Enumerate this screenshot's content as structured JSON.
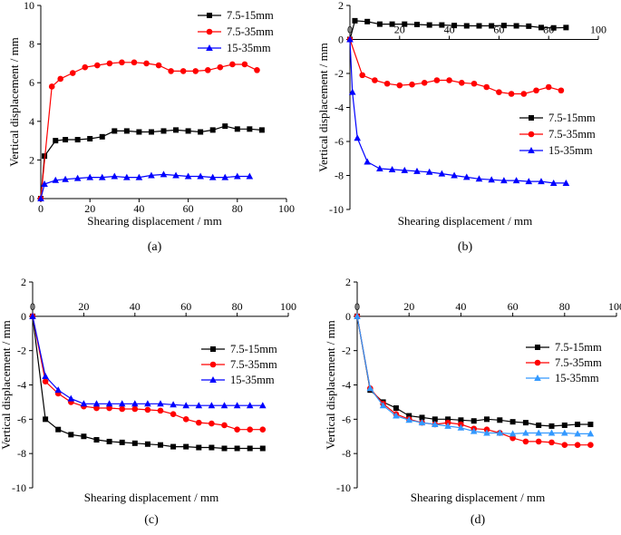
{
  "chart_data": [
    {
      "type": "line",
      "caption": "(a)",
      "xlabel": "Shearing displacement / mm",
      "ylabel": "Vertical displacement / mm",
      "xlim": [
        0,
        100
      ],
      "ylim": [
        0,
        10
      ],
      "xticks": [
        0,
        20,
        40,
        60,
        80,
        100
      ],
      "yticks": [
        0,
        2,
        4,
        6,
        8,
        10
      ],
      "legend_position": "top-right",
      "series": [
        {
          "name": "7.5-15mm",
          "color": "#000000",
          "marker": "square",
          "x": [
            0,
            1.5,
            6,
            10,
            15,
            20,
            25,
            30,
            35,
            40,
            45,
            50,
            55,
            60,
            65,
            70,
            75,
            80,
            85,
            90
          ],
          "y": [
            0,
            2.2,
            3.0,
            3.05,
            3.05,
            3.1,
            3.2,
            3.5,
            3.5,
            3.45,
            3.45,
            3.5,
            3.55,
            3.5,
            3.45,
            3.55,
            3.75,
            3.6,
            3.6,
            3.55
          ]
        },
        {
          "name": "7.5-35mm",
          "color": "#ff0000",
          "marker": "circle",
          "x": [
            0,
            4.5,
            8,
            13,
            18,
            23,
            28,
            33,
            38,
            43,
            48,
            53,
            58,
            63,
            68,
            73,
            78,
            83,
            88
          ],
          "y": [
            0,
            5.8,
            6.2,
            6.5,
            6.8,
            6.9,
            7.0,
            7.05,
            7.05,
            7.0,
            6.9,
            6.6,
            6.6,
            6.6,
            6.65,
            6.8,
            6.95,
            6.95,
            6.65
          ]
        },
        {
          "name": "15-35mm",
          "color": "#0000ff",
          "marker": "triangle",
          "x": [
            0,
            1.5,
            6,
            10,
            15,
            20,
            25,
            30,
            35,
            40,
            45,
            50,
            55,
            60,
            65,
            70,
            75,
            80,
            85
          ],
          "y": [
            0,
            0.75,
            0.95,
            1.0,
            1.05,
            1.1,
            1.1,
            1.15,
            1.1,
            1.1,
            1.2,
            1.25,
            1.2,
            1.15,
            1.15,
            1.1,
            1.1,
            1.15,
            1.15
          ]
        }
      ]
    },
    {
      "type": "line",
      "caption": "(b)",
      "xlabel": "Shearing displacement / mm",
      "ylabel": "Vertical displacement / mm",
      "xlim": [
        0,
        100
      ],
      "ylim": [
        -10,
        2
      ],
      "xticks": [
        0,
        20,
        40,
        60,
        80,
        100
      ],
      "yticks": [
        2,
        0,
        -2,
        -4,
        -6,
        -8,
        -10
      ],
      "legend_position": "middle-right",
      "series": [
        {
          "name": "7.5-15mm",
          "color": "#000000",
          "marker": "square",
          "x": [
            0,
            2,
            7,
            12,
            17,
            22,
            27,
            32,
            37,
            42,
            47,
            52,
            57,
            62,
            67,
            72,
            77,
            82,
            87
          ],
          "y": [
            0,
            1.1,
            1.05,
            0.9,
            0.9,
            0.9,
            0.88,
            0.85,
            0.85,
            0.82,
            0.8,
            0.8,
            0.8,
            0.82,
            0.8,
            0.78,
            0.7,
            0.68,
            0.7
          ]
        },
        {
          "name": "7.5-35mm",
          "color": "#ff0000",
          "marker": "circle",
          "x": [
            0,
            5,
            10,
            15,
            20,
            25,
            30,
            35,
            40,
            45,
            50,
            55,
            60,
            65,
            70,
            75,
            80,
            85
          ],
          "y": [
            0,
            -2.1,
            -2.4,
            -2.6,
            -2.7,
            -2.65,
            -2.55,
            -2.4,
            -2.4,
            -2.55,
            -2.6,
            -2.8,
            -3.1,
            -3.2,
            -3.2,
            -3.0,
            -2.8,
            -3.0
          ]
        },
        {
          "name": "15-35mm",
          "color": "#0000ff",
          "marker": "triangle",
          "x": [
            0,
            1,
            3,
            7,
            12,
            17,
            22,
            27,
            32,
            37,
            42,
            47,
            52,
            57,
            62,
            67,
            72,
            77,
            82,
            87
          ],
          "y": [
            0,
            -3.1,
            -5.8,
            -7.2,
            -7.6,
            -7.65,
            -7.7,
            -7.75,
            -7.8,
            -7.9,
            -8.0,
            -8.1,
            -8.2,
            -8.25,
            -8.3,
            -8.3,
            -8.35,
            -8.35,
            -8.45,
            -8.45
          ]
        }
      ]
    },
    {
      "type": "line",
      "caption": "(c)",
      "xlabel": "Shearing displacement / mm",
      "ylabel": "Vertical displacement / mm",
      "xlim": [
        0,
        100
      ],
      "ylim": [
        -10,
        2
      ],
      "xticks": [
        0,
        20,
        40,
        60,
        80,
        100
      ],
      "yticks": [
        2,
        0,
        -2,
        -4,
        -6,
        -8,
        -10
      ],
      "legend_position": "middle-right",
      "series": [
        {
          "name": "7.5-15mm",
          "color": "#000000",
          "marker": "square",
          "x": [
            0,
            5,
            10,
            15,
            20,
            25,
            30,
            35,
            40,
            45,
            50,
            55,
            60,
            65,
            70,
            75,
            80,
            85,
            90
          ],
          "y": [
            0,
            -6.0,
            -6.6,
            -6.9,
            -7.0,
            -7.2,
            -7.3,
            -7.35,
            -7.4,
            -7.45,
            -7.5,
            -7.6,
            -7.6,
            -7.65,
            -7.65,
            -7.7,
            -7.7,
            -7.7,
            -7.7
          ]
        },
        {
          "name": "7.5-35mm",
          "color": "#ff0000",
          "marker": "circle",
          "x": [
            0,
            5,
            10,
            15,
            20,
            25,
            30,
            35,
            40,
            45,
            50,
            55,
            60,
            65,
            70,
            75,
            80,
            85,
            90
          ],
          "y": [
            0,
            -3.8,
            -4.5,
            -5.0,
            -5.25,
            -5.35,
            -5.35,
            -5.4,
            -5.4,
            -5.45,
            -5.5,
            -5.7,
            -6.0,
            -6.2,
            -6.25,
            -6.35,
            -6.6,
            -6.6,
            -6.6
          ]
        },
        {
          "name": "15-35mm",
          "color": "#0000ff",
          "marker": "triangle",
          "x": [
            0,
            5,
            10,
            15,
            20,
            25,
            30,
            35,
            40,
            45,
            50,
            55,
            60,
            65,
            70,
            75,
            80,
            85,
            90
          ],
          "y": [
            0,
            -3.5,
            -4.3,
            -4.8,
            -5.1,
            -5.1,
            -5.1,
            -5.1,
            -5.1,
            -5.1,
            -5.1,
            -5.15,
            -5.2,
            -5.2,
            -5.2,
            -5.2,
            -5.2,
            -5.2,
            -5.2
          ]
        }
      ]
    },
    {
      "type": "line",
      "caption": "(d)",
      "xlabel": "Shearing displacement / mm",
      "ylabel": "Vertical displacement / mm",
      "xlim": [
        0,
        100
      ],
      "ylim": [
        -10,
        2
      ],
      "xticks": [
        0,
        20,
        40,
        60,
        80,
        100
      ],
      "yticks": [
        2,
        0,
        -2,
        -4,
        -6,
        -8,
        -10
      ],
      "legend_position": "middle-right",
      "series": [
        {
          "name": "7.5-15mm",
          "color": "#000000",
          "marker": "square",
          "x": [
            0,
            5,
            10,
            15,
            20,
            25,
            30,
            35,
            40,
            45,
            50,
            55,
            60,
            65,
            70,
            75,
            80,
            85,
            90
          ],
          "y": [
            0,
            -4.3,
            -5.0,
            -5.35,
            -5.8,
            -5.9,
            -6.0,
            -6.0,
            -6.05,
            -6.1,
            -6.0,
            -6.05,
            -6.15,
            -6.2,
            -6.35,
            -6.4,
            -6.35,
            -6.3,
            -6.3
          ]
        },
        {
          "name": "7.5-35mm",
          "color": "#ff0000",
          "marker": "circle",
          "x": [
            0,
            5,
            10,
            15,
            20,
            25,
            30,
            35,
            40,
            45,
            50,
            55,
            60,
            65,
            70,
            75,
            80,
            85,
            90
          ],
          "y": [
            0,
            -4.2,
            -5.1,
            -5.7,
            -6.0,
            -6.2,
            -6.3,
            -6.2,
            -6.3,
            -6.55,
            -6.6,
            -6.8,
            -7.1,
            -7.3,
            -7.3,
            -7.35,
            -7.5,
            -7.5,
            -7.5
          ]
        },
        {
          "name": "15-35mm",
          "color": "#3399ff",
          "marker": "triangle",
          "x": [
            0,
            5,
            10,
            15,
            20,
            25,
            30,
            35,
            40,
            45,
            50,
            55,
            60,
            65,
            70,
            75,
            80,
            85,
            90
          ],
          "y": [
            0,
            -4.2,
            -5.2,
            -5.8,
            -6.05,
            -6.2,
            -6.3,
            -6.4,
            -6.5,
            -6.7,
            -6.8,
            -6.8,
            -6.85,
            -6.8,
            -6.8,
            -6.8,
            -6.8,
            -6.85,
            -6.85
          ]
        }
      ]
    }
  ]
}
